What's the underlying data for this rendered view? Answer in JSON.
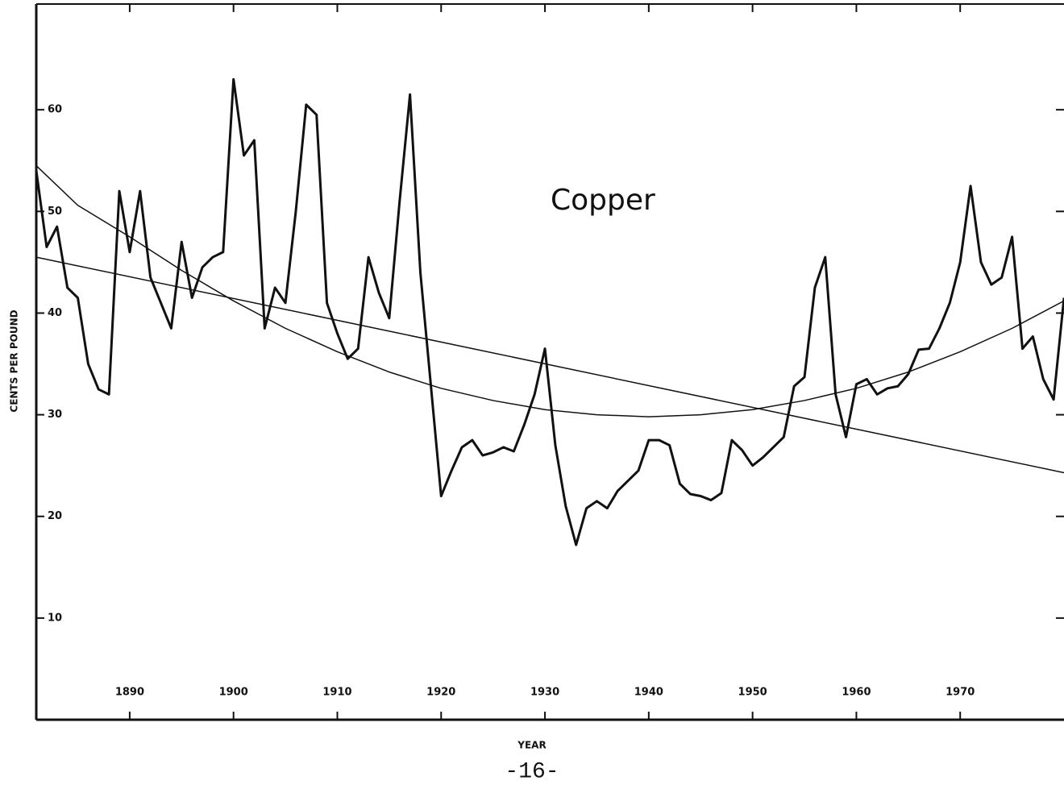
{
  "chart_data": {
    "type": "line",
    "annotation": "Copper",
    "y_label": "CENTS PER POUND",
    "x_label": "YEAR",
    "page_number": "-16-",
    "xlim": [
      1881,
      1980
    ],
    "ylim": [
      0,
      70.4
    ],
    "xticks": [
      1890,
      1900,
      1910,
      1920,
      1930,
      1940,
      1950,
      1960,
      1970
    ],
    "yticks": [
      10,
      20,
      30,
      40,
      50,
      60
    ],
    "grid": false,
    "series": [
      {
        "color": "#111111",
        "width": 3,
        "x": [
          1881,
          1882,
          1883,
          1884,
          1885,
          1886,
          1887,
          1888,
          1889,
          1890,
          1891,
          1892,
          1893,
          1894,
          1895,
          1896,
          1897,
          1898,
          1899,
          1900,
          1901,
          1902,
          1903,
          1904,
          1905,
          1906,
          1907,
          1908,
          1909,
          1910,
          1911,
          1912,
          1913,
          1914,
          1915,
          1916,
          1917,
          1918,
          1919,
          1920,
          1921,
          1922,
          1923,
          1924,
          1925,
          1926,
          1927,
          1928,
          1929,
          1930,
          1931,
          1932,
          1933,
          1934,
          1935,
          1936,
          1937,
          1938,
          1939,
          1940,
          1941,
          1942,
          1943,
          1944,
          1945,
          1946,
          1947,
          1948,
          1949,
          1950,
          1951,
          1952,
          1953,
          1954,
          1955,
          1956,
          1957,
          1958,
          1959,
          1960,
          1961,
          1962,
          1963,
          1964,
          1965,
          1966,
          1967,
          1968,
          1969,
          1970,
          1971,
          1972,
          1973,
          1974,
          1975,
          1976,
          1977,
          1978,
          1979,
          1980
        ],
        "values": [
          54,
          46.5,
          48.5,
          42.5,
          41.5,
          35,
          32.5,
          32,
          52,
          46,
          52,
          43.5,
          41,
          38.5,
          47,
          41.5,
          44.5,
          45.5,
          46,
          63,
          55.5,
          57,
          38.5,
          42.5,
          41,
          50,
          60.5,
          59.5,
          41,
          38,
          35.5,
          36.5,
          45.5,
          42,
          39.5,
          51,
          61.5,
          44,
          33,
          22,
          24.5,
          26.8,
          27.5,
          26,
          26.3,
          26.8,
          26.4,
          29,
          32,
          36.5,
          27,
          21,
          17.2,
          20.8,
          21.5,
          20.8,
          22.5,
          23.5,
          24.5,
          27.5,
          27.5,
          27,
          23.2,
          22.2,
          22,
          21.6,
          22.3,
          27.5,
          26.5,
          25,
          25.8,
          26.8,
          27.8,
          32.8,
          33.7,
          42.5,
          45.5,
          32,
          27.8,
          33,
          33.5,
          32,
          32.6,
          32.8,
          34,
          36.4,
          36.5,
          38.5,
          41,
          45,
          52.5,
          45,
          42.8,
          43.5,
          47.5,
          36.5,
          37.7,
          33.5,
          31.5,
          41.5
        ]
      },
      {
        "color": "#111111",
        "width": 1.5,
        "x": [
          1881,
          1980
        ],
        "values": [
          45.5,
          24.3
        ]
      },
      {
        "color": "#111111",
        "width": 1.5,
        "x": [
          1881,
          1885,
          1890,
          1895,
          1900,
          1905,
          1910,
          1915,
          1920,
          1925,
          1930,
          1935,
          1940,
          1945,
          1950,
          1955,
          1960,
          1965,
          1970,
          1975,
          1980
        ],
        "values": [
          54.5,
          50.6,
          47.5,
          44.2,
          41.2,
          38.5,
          36.2,
          34.2,
          32.6,
          31.4,
          30.5,
          30,
          29.8,
          30,
          30.5,
          31.4,
          32.6,
          34.2,
          36.2,
          38.5,
          41.2
        ]
      }
    ]
  }
}
